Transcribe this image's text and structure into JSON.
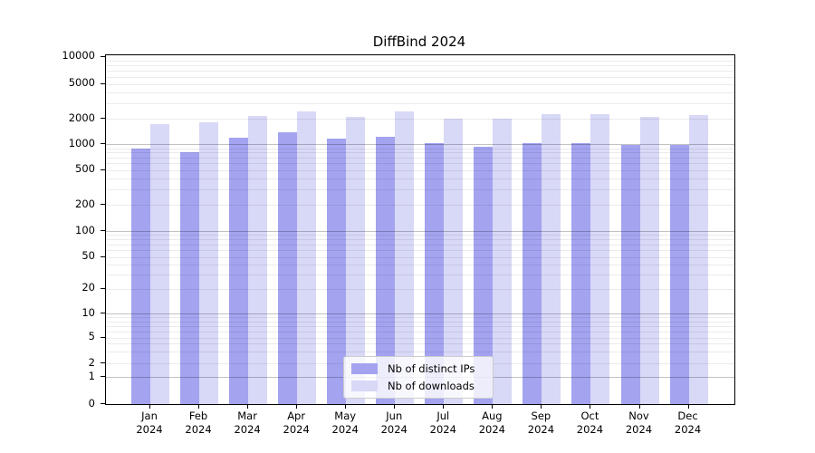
{
  "chart_data": {
    "type": "bar",
    "title": "DiffBind 2024",
    "categories": [
      "Jan",
      "Feb",
      "Mar",
      "Apr",
      "May",
      "Jun",
      "Jul",
      "Aug",
      "Sep",
      "Oct",
      "Nov",
      "Dec"
    ],
    "category_year": "2024",
    "series": [
      {
        "name": "Nb of distinct IPs",
        "color": "#a3a3f0",
        "values": [
          885,
          805,
          1190,
          1380,
          1155,
          1240,
          1040,
          945,
          1030,
          1040,
          975,
          985
        ]
      },
      {
        "name": "Nb of downloads",
        "color": "#d8d8f7",
        "values": [
          1725,
          1830,
          2160,
          2430,
          2080,
          2430,
          2010,
          1980,
          2270,
          2230,
          2110,
          2180
        ]
      }
    ],
    "xlabel": "",
    "ylabel": "",
    "ylim": [
      0,
      10000
    ],
    "yscale": "log-like with 0 baseline",
    "y_ticks": [
      0,
      1,
      2,
      5,
      10,
      20,
      50,
      100,
      200,
      500,
      1000,
      2000,
      5000,
      10000
    ],
    "grid": "horizontal log minor and major gridlines",
    "legend_position": "bottom-center inside plot"
  },
  "colors": {
    "background": "#ffffff",
    "bar_distinct_ips": "#a3a3f0",
    "bar_downloads": "#d8d8f7",
    "spine": "#000000",
    "legend_border": "#cccccc"
  }
}
